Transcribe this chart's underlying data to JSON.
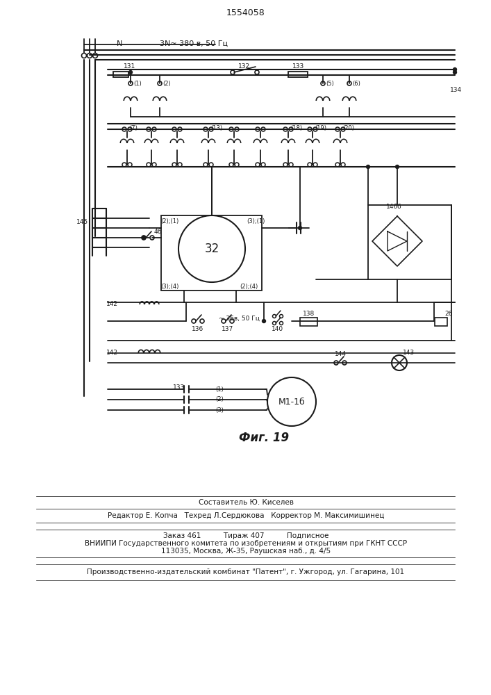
{
  "patent_number": "1554058",
  "bg_color": "#ffffff",
  "line_color": "#1a1a1a",
  "text_color": "#1a1a1a",
  "fig_caption": "Фиг. 19",
  "top_label_N": "N",
  "top_label_3N": "3N~ 380 в, 50 Гц",
  "label_131": "131",
  "label_132": "132",
  "label_133": "133",
  "label_134": "134",
  "label_145": "145",
  "label_46": "46",
  "label_32": "32",
  "label_146": "146б",
  "label_136": "136",
  "label_137": "137",
  "label_138": "138",
  "label_140": "140",
  "label_142": "142",
  "label_26": "26",
  "label_144": "144",
  "label_143": "143",
  "label_133b": "133",
  "label_m1": "M1-1б",
  "label_36v": "~ 36в, 50 Гц",
  "label_2_1": "(2);(1)",
  "label_3_1": "(3);(1)",
  "label_3_4": "(3);(4)",
  "label_2_4": "(2);(4)",
  "bottom_line1": "Составитель Ю. Киселев",
  "bottom_line2": "Редактор Е. Копча   Техред Л.Сердюкова   Корректор М. Максимишинец",
  "bottom_line3": "Заказ 461          Тираж 407          Подписное",
  "bottom_line4": "ВНИИПИ Государственного комитета по изобретениям и открытиям при ГКНТ СССР",
  "bottom_line5": "113035, Москва, Ж-35, Раушская наб., д. 4/5",
  "bottom_line6": "Производственно-издательский комбинат \"Патент\", г. Ужгород, ул. Гагарина, 101"
}
